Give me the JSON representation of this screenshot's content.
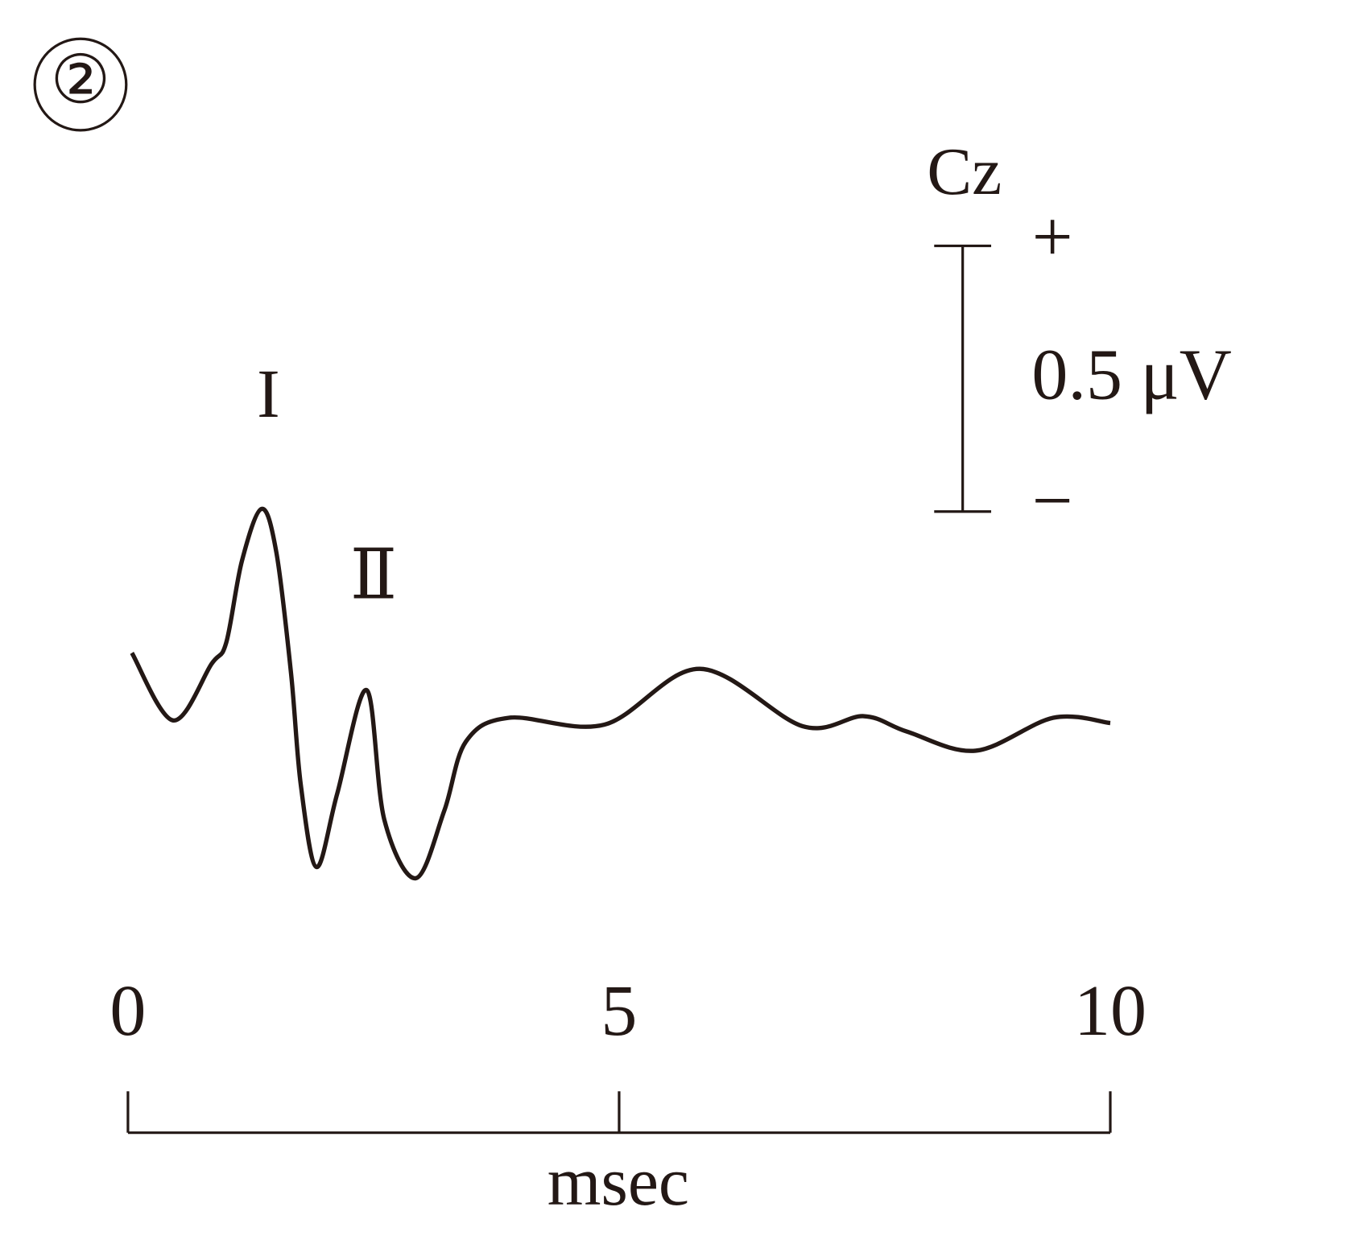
{
  "chart_data": {
    "type": "line",
    "panel_label": "②",
    "channel": "Cz",
    "x_label": "msec",
    "x": [
      0.04,
      0.46,
      0.85,
      1.0,
      1.16,
      1.36,
      1.51,
      1.66,
      1.76,
      1.92,
      2.13,
      2.43,
      2.61,
      2.93,
      3.22,
      3.44,
      3.88,
      4.85,
      5.82,
      6.87,
      7.49,
      7.93,
      8.63,
      9.42,
      10.0
    ],
    "series": [
      {
        "name": "Cz",
        "color": "#231815",
        "values": [
          0.135,
          0.008,
          0.114,
          0.154,
          0.308,
          0.406,
          0.325,
          0.097,
          -0.114,
          -0.268,
          -0.13,
          0.065,
          -0.179,
          -0.289,
          -0.162,
          -0.032,
          0.013,
          0,
          0.105,
          -0.003,
          0.016,
          -0.013,
          -0.049,
          0.013,
          0.003
        ]
      }
    ],
    "xlim": [
      0,
      10
    ],
    "xticks": [
      0,
      5,
      10
    ],
    "ylim": [
      -0.5,
      0.5
    ],
    "scale_bar": {
      "value": 0.5,
      "label": "0.5 μV",
      "plus": "+",
      "minus": "−"
    },
    "annotations": [
      {
        "text": "I",
        "x": 1.36,
        "y": 0.406
      },
      {
        "text": "Ⅱ",
        "x": 2.43,
        "y": 0.065
      }
    ]
  }
}
